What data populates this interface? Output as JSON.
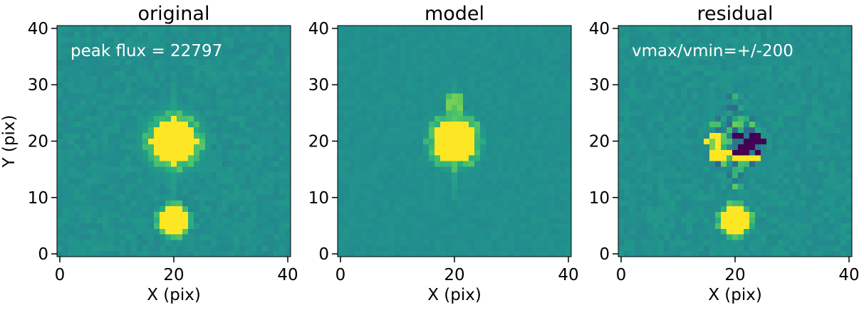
{
  "colors": {
    "background": "#21918c",
    "high": "#fde725",
    "low": "#440154",
    "annotation": "#ffffff",
    "axis": "#000000"
  },
  "chart_data": [
    {
      "type": "heatmap",
      "title": "original",
      "xlabel": "X (pix)",
      "ylabel": "Y (pix)",
      "xlim": [
        -0.5,
        40.5
      ],
      "ylim": [
        -0.5,
        40.5
      ],
      "xticks": [
        "0",
        "20",
        "40"
      ],
      "yticks": [
        "0",
        "10",
        "20",
        "30",
        "40"
      ],
      "annotation": "peak flux = 22797",
      "colormap": "viridis",
      "grid": false,
      "features": [
        {
          "kind": "saturated-source",
          "center": [
            20,
            20
          ],
          "radius": 4.0
        },
        {
          "kind": "halo",
          "center": [
            20,
            20
          ],
          "radius": 7.0
        },
        {
          "kind": "saturated-source",
          "center": [
            20,
            6
          ],
          "radius": 2.3
        }
      ]
    },
    {
      "type": "heatmap",
      "title": "model",
      "xlabel": "X (pix)",
      "ylabel": "",
      "xlim": [
        -0.5,
        40.5
      ],
      "ylim": [
        -0.5,
        40.5
      ],
      "xticks": [
        "0",
        "20",
        "40"
      ],
      "yticks": [
        "0",
        "10",
        "20",
        "30",
        "40"
      ],
      "annotation": "",
      "colormap": "viridis",
      "grid": false,
      "features": [
        {
          "kind": "saturated-source",
          "center": [
            20,
            20
          ],
          "radius": 3.8
        },
        {
          "kind": "halo",
          "center": [
            20,
            20
          ],
          "radius": 6.0
        },
        {
          "kind": "spike",
          "center": [
            20,
            26
          ],
          "radius": 2.0
        }
      ]
    },
    {
      "type": "heatmap",
      "title": "residual",
      "xlabel": "X (pix)",
      "ylabel": "",
      "xlim": [
        -0.5,
        40.5
      ],
      "ylim": [
        -0.5,
        40.5
      ],
      "xticks": [
        "0",
        "20",
        "40"
      ],
      "yticks": [
        "0",
        "10",
        "20",
        "30",
        "40"
      ],
      "annotation": "vmax/vmin=+/-200",
      "vmax": 200,
      "vmin": -200,
      "colormap": "viridis",
      "grid": false,
      "features": [
        {
          "kind": "residual-core",
          "center": [
            20,
            20
          ],
          "radius": 3.5
        },
        {
          "kind": "saturated-source",
          "center": [
            20,
            6
          ],
          "radius": 2.3
        }
      ]
    }
  ]
}
